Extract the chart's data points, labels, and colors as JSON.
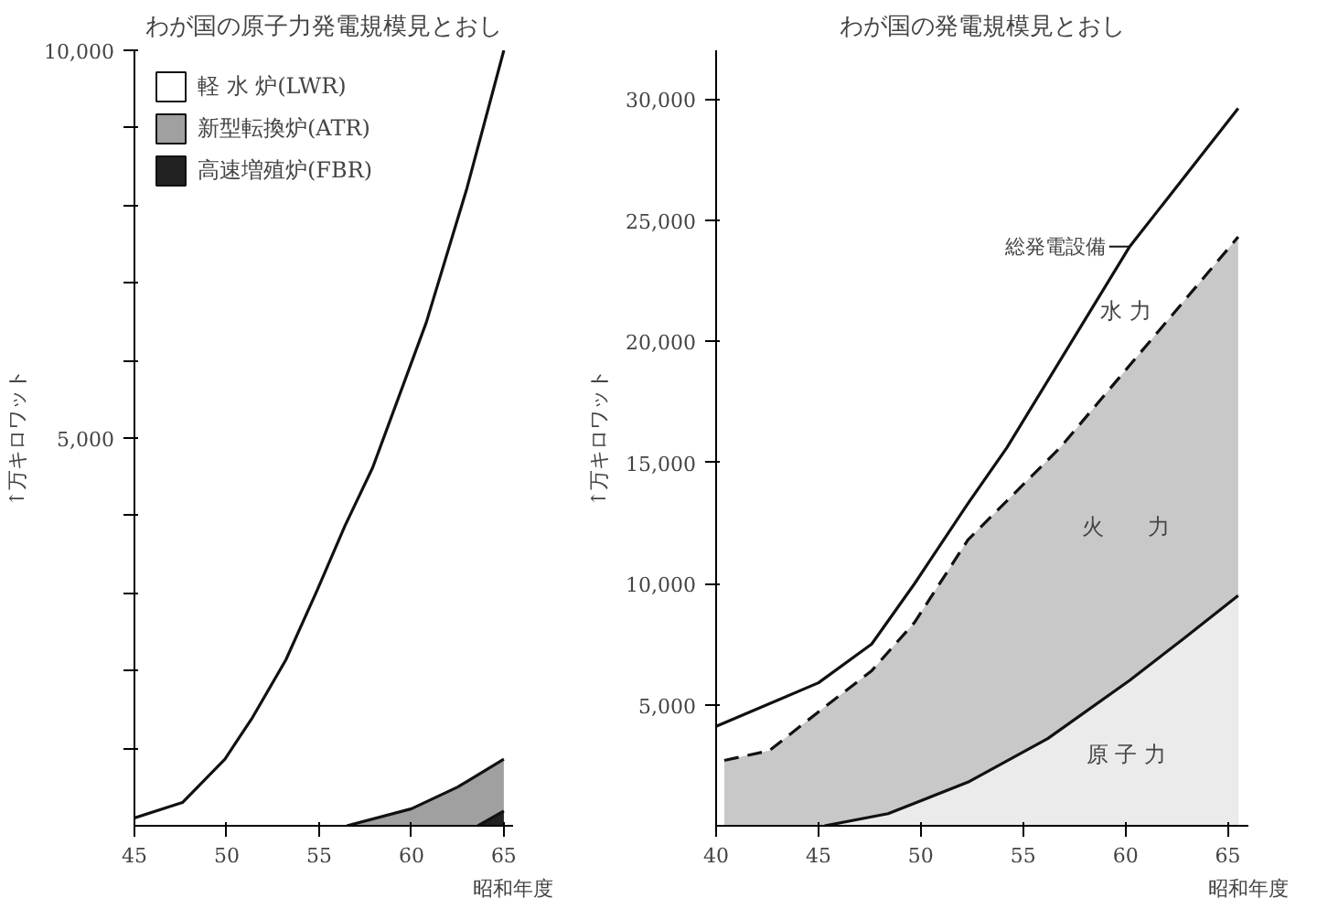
{
  "chart_data": [
    {
      "type": "area",
      "title": "わが国の原子力発電規模見とおし",
      "xlabel": "昭和年度",
      "ylabel": "↑万キロワット",
      "legend": "top left",
      "grid": false,
      "xlim": [
        45,
        65.5
      ],
      "xticks": [
        45,
        50,
        55,
        60,
        65
      ],
      "ylim": [
        0,
        10000
      ],
      "yticks": [
        {
          "value": 1000,
          "label": null
        },
        {
          "value": 2000,
          "label": null
        },
        {
          "value": 3000,
          "label": null
        },
        {
          "value": 4000,
          "label": null
        },
        {
          "value": 5000,
          "label": "5,000"
        },
        {
          "value": 6000,
          "label": null
        },
        {
          "value": 7000,
          "label": null
        },
        {
          "value": 8000,
          "label": null
        },
        {
          "value": 9000,
          "label": null
        },
        {
          "value": 10000,
          "label": "10,000"
        }
      ],
      "series": [
        {
          "name": "軽 水 炉(LWR)",
          "color": "#ffffff",
          "x": [
            45,
            47.6,
            49.9,
            51.4,
            53.2,
            54.9,
            56.4,
            57.9,
            60.8,
            63.0,
            65
          ],
          "values": [
            100,
            300,
            860,
            1400,
            2140,
            3040,
            3870,
            4620,
            6490,
            8220,
            10000
          ]
        },
        {
          "name": "新型転換炉(ATR)",
          "color": "#a0a0a0",
          "x": [
            56.5,
            60,
            62.5,
            65
          ],
          "values": [
            0,
            220,
            500,
            860
          ]
        },
        {
          "name": "高速増殖炉(FBR)",
          "color": "#222222",
          "x": [
            63.6,
            65
          ],
          "values": [
            0,
            190
          ]
        }
      ]
    },
    {
      "type": "area",
      "title": "わが国の発電規模見とおし",
      "xlabel": "昭和年度",
      "ylabel": "↑万キロワット",
      "grid": false,
      "xlim": [
        40,
        66
      ],
      "xticks": [
        40,
        45,
        50,
        55,
        60,
        65
      ],
      "ylim": [
        0,
        32000
      ],
      "yticks": [
        {
          "value": 5000,
          "label": "5,000"
        },
        {
          "value": 10000,
          "label": "10,000"
        },
        {
          "value": 15000,
          "label": "15,000"
        },
        {
          "value": 20000,
          "label": "20,000"
        },
        {
          "value": 25000,
          "label": "25,000"
        },
        {
          "value": 30000,
          "label": "30,000"
        }
      ],
      "series": [
        {
          "name": "総発電設備",
          "color": "#ffffff",
          "line_style": "solid",
          "x": [
            40,
            45,
            47.6,
            49.7,
            52.3,
            54.2,
            60.2,
            65.5
          ],
          "values": [
            4100,
            5900,
            7500,
            10000,
            13300,
            15600,
            23900,
            29600
          ]
        },
        {
          "color": "#c8c8c8",
          "line_style": "dashed",
          "x": [
            40.4,
            42.6,
            45,
            47.6,
            49.7,
            52.3,
            56.8,
            65.5
          ],
          "values": [
            2700,
            3100,
            4700,
            6400,
            8400,
            11800,
            15600,
            24300
          ]
        },
        {
          "color": "#ebebeb",
          "line_style": "solid",
          "x": [
            45.3,
            48.4,
            52.3,
            56.2,
            60.2,
            62.8,
            65.5
          ],
          "values": [
            0,
            500,
            1800,
            3600,
            6000,
            7700,
            9500
          ]
        }
      ],
      "annotations": [
        "水 力",
        "火　　力",
        "原 子 力"
      ]
    }
  ]
}
